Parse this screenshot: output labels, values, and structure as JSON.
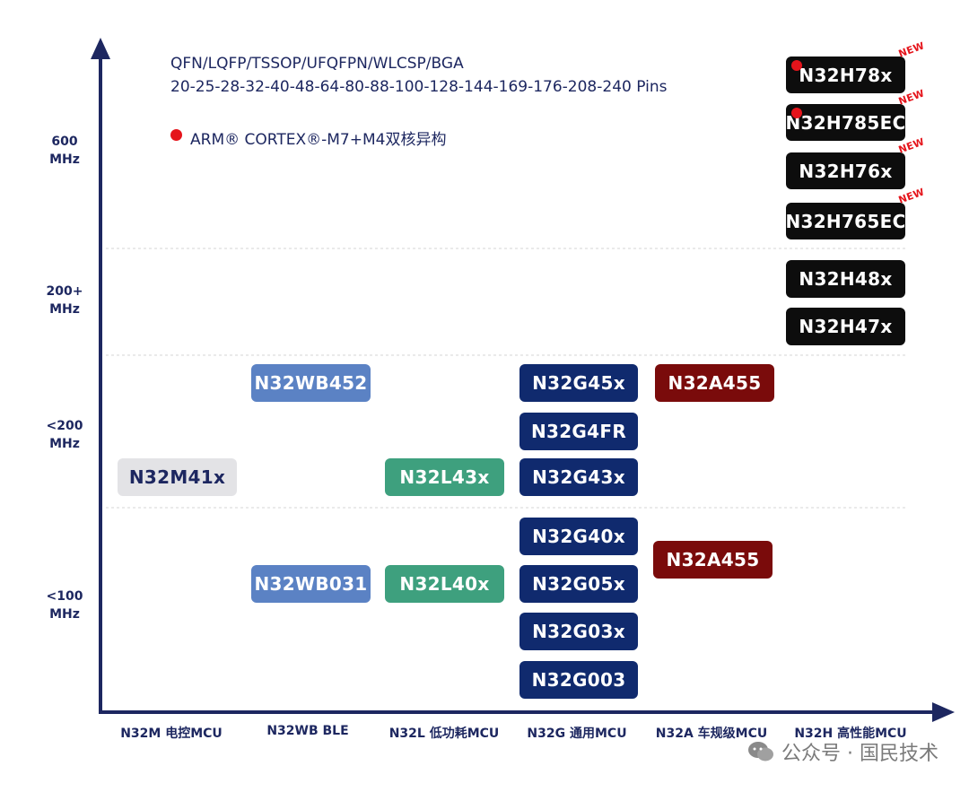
{
  "packages_line": "QFN/LQFP/TSSOP/UFQFPN/WLCSP/BGA",
  "pins_line": "20-25-28-32-40-48-64-80-88-100-128-144-169-176-208-240 Pins",
  "legend_text": "ARM® CORTEX®-M7+M4双核异构",
  "colors": {
    "axis": "#1d2760",
    "legend_dot": "#e5141b",
    "m_series": "#e3e3e6",
    "wb_series": "#5b82c4",
    "l_series": "#3ea07e",
    "g_series": "#102a6e",
    "a_series": "#7a0b0b",
    "h_series": "#0d0d0d"
  },
  "y_labels": [
    {
      "l1": "600",
      "l2": "MHz"
    },
    {
      "l1": "200+",
      "l2": "MHz"
    },
    {
      "l1": "<200",
      "l2": "MHz"
    },
    {
      "l1": "<100",
      "l2": "MHz"
    }
  ],
  "x_labels": [
    "N32M 电控MCU",
    "N32WB BLE",
    "N32L 低功耗MCU",
    "N32G 通用MCU",
    "N32A 车规级MCU",
    "N32H 高性能MCU"
  ],
  "chips": {
    "m41": "N32M41x",
    "wb452": "N32WB452",
    "wb031": "N32WB031",
    "l43": "N32L43x",
    "l40": "N32L40x",
    "g45": "N32G45x",
    "g4fr": "N32G4FR",
    "g43": "N32G43x",
    "g40": "N32G40x",
    "g05": "N32G05x",
    "g03": "N32G03x",
    "g003": "N32G003",
    "a455_hi": "N32A455",
    "a455_lo": "N32A455",
    "h78": "N32H78x",
    "h785ec": "N32H785EC",
    "h76": "N32H76x",
    "h765ec": "N32H765EC",
    "h48": "N32H48x",
    "h47": "N32H47x"
  },
  "new_badge": "NEW",
  "watermark": "公众号 · 国民技术"
}
